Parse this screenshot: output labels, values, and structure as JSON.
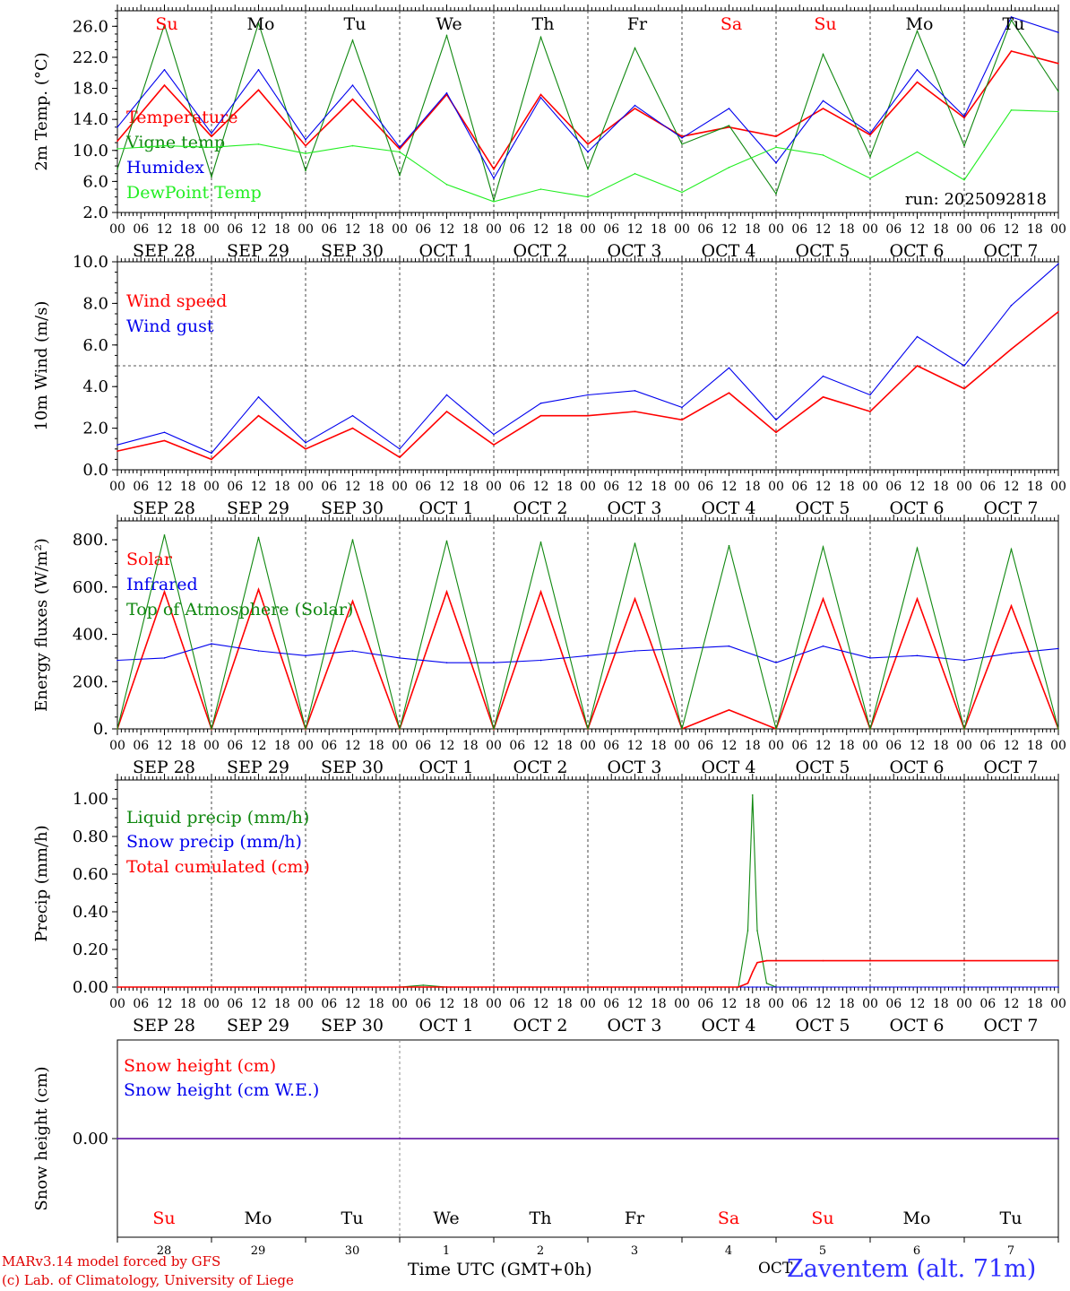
{
  "footer": {
    "credit_line1": "MARv3.14 model forced by GFS",
    "credit_line2": "(c) Lab. of Climatology, University of Liege",
    "x_title": "Time UTC (GMT+0h)",
    "station": "Zaventem (alt. 71m)",
    "month_label": "OCT"
  },
  "colors": {
    "red": "#ff0000",
    "darkgreen": "#108810",
    "blue": "#0000ee",
    "lightgreen": "#22ee22",
    "weekend": "#ff0000",
    "weekday": "#000000"
  },
  "day_names": [
    {
      "name": "Su",
      "weekend": true
    },
    {
      "name": "Mo",
      "weekend": false
    },
    {
      "name": "Tu",
      "weekend": false
    },
    {
      "name": "We",
      "weekend": false
    },
    {
      "name": "Th",
      "weekend": false
    },
    {
      "name": "Fr",
      "weekend": false
    },
    {
      "name": "Sa",
      "weekend": true
    },
    {
      "name": "Su",
      "weekend": true
    },
    {
      "name": "Mo",
      "weekend": false
    },
    {
      "name": "Tu",
      "weekend": false
    }
  ],
  "date_labels": [
    "SEP 28",
    "SEP 29",
    "SEP 30",
    "OCT  1",
    "OCT  2",
    "OCT  3",
    "OCT  4",
    "OCT  5",
    "OCT  6",
    "OCT  7"
  ],
  "bottom_day_numbers": [
    "28",
    "29",
    "30",
    "1",
    "2",
    "3",
    "4",
    "5",
    "6",
    "7"
  ],
  "hour_ticks": [
    "00",
    "06",
    "12",
    "18"
  ],
  "final_hour_tick": "00",
  "chart_data": [
    {
      "type": "line",
      "ylabel": "2m Temp. (°C)",
      "ylim": [
        2,
        28
      ],
      "yticks": [
        "26.0",
        "22.0",
        "18.0",
        "14.0",
        "10.0",
        "6.0",
        "2.0"
      ],
      "ytick_values": [
        26,
        22,
        18,
        14,
        10,
        6,
        2
      ],
      "annotation": "run: 2025092818",
      "x": [
        0,
        0.5,
        1,
        1.5,
        2,
        2.5,
        3,
        3.5,
        4,
        4.5,
        5,
        5.5,
        6,
        6.5,
        7,
        7.5,
        8,
        8.5,
        9,
        9.5,
        10
      ],
      "series": [
        {
          "name": "Temperature",
          "color": "red",
          "values": [
            11.2,
            18.4,
            11.8,
            17.8,
            10.6,
            16.6,
            10.2,
            17.2,
            7.6,
            17.2,
            10.8,
            15.4,
            11.8,
            13.0,
            11.8,
            15.4,
            12.0,
            18.8,
            14.2,
            22.8,
            21.2
          ]
        },
        {
          "name": "Vigne temp",
          "color": "darkgreen",
          "values": [
            7.6,
            26.2,
            6.6,
            26.4,
            7.4,
            24.2,
            6.8,
            24.8,
            3.6,
            24.6,
            7.6,
            23.2,
            10.8,
            13.2,
            4.4,
            22.4,
            9.2,
            25.4,
            10.6,
            26.8,
            17.6
          ]
        },
        {
          "name": "Humidex",
          "color": "blue",
          "values": [
            13.0,
            20.4,
            12.2,
            20.4,
            11.4,
            18.4,
            10.4,
            17.4,
            6.4,
            16.8,
            9.8,
            15.8,
            11.6,
            15.4,
            8.4,
            16.4,
            12.2,
            20.4,
            14.4,
            27.2,
            25.2
          ]
        },
        {
          "name": "DewPoint Temp",
          "color": "lightgreen",
          "values": [
            10.2,
            10.6,
            10.4,
            10.8,
            9.6,
            10.6,
            9.8,
            5.6,
            3.4,
            5.0,
            4.0,
            7.0,
            4.6,
            7.8,
            10.4,
            9.4,
            6.4,
            9.8,
            6.2,
            15.2,
            15.0
          ]
        }
      ]
    },
    {
      "type": "line",
      "ylabel": "10m Wind (m/s)",
      "ylim": [
        0,
        10
      ],
      "yticks": [
        "10.0",
        "8.0",
        "6.0",
        "4.0",
        "2.0",
        "0.0"
      ],
      "ytick_values": [
        10,
        8,
        6,
        4,
        2,
        0
      ],
      "reference_line": 5,
      "x": [
        0,
        0.5,
        1,
        1.5,
        2,
        2.5,
        3,
        3.5,
        4,
        4.5,
        5,
        5.5,
        6,
        6.5,
        7,
        7.5,
        8,
        8.5,
        9,
        9.5,
        10
      ],
      "series": [
        {
          "name": "Wind speed",
          "color": "red",
          "values": [
            0.9,
            1.4,
            0.5,
            2.6,
            1.0,
            2.0,
            0.6,
            2.8,
            1.2,
            2.6,
            2.6,
            2.8,
            2.4,
            3.7,
            1.8,
            3.5,
            2.8,
            5.0,
            3.9,
            5.8,
            7.6
          ]
        },
        {
          "name": "Wind gust",
          "color": "blue",
          "values": [
            1.2,
            1.8,
            0.8,
            3.5,
            1.3,
            2.6,
            1.0,
            3.6,
            1.7,
            3.2,
            3.6,
            3.8,
            3.0,
            4.9,
            2.4,
            4.5,
            3.6,
            6.4,
            5.0,
            7.9,
            9.9
          ]
        }
      ]
    },
    {
      "type": "line",
      "ylabel": "Energy fluxes (W/m²)",
      "ylim": [
        0,
        880
      ],
      "yticks": [
        "800.",
        "600.",
        "400.",
        "200.",
        "0."
      ],
      "ytick_values": [
        800,
        600,
        400,
        200,
        0
      ],
      "x": [
        0,
        0.5,
        1,
        1.5,
        2,
        2.5,
        3,
        3.5,
        4,
        4.5,
        5,
        5.5,
        6,
        6.5,
        7,
        7.5,
        8,
        8.5,
        9,
        9.5,
        10
      ],
      "series": [
        {
          "name": "Solar",
          "color": "red",
          "values": [
            0,
            580,
            0,
            590,
            0,
            540,
            0,
            580,
            0,
            580,
            0,
            550,
            0,
            80,
            0,
            550,
            0,
            550,
            0,
            520,
            0
          ]
        },
        {
          "name": "Infrared",
          "color": "blue",
          "values": [
            290,
            300,
            360,
            330,
            310,
            330,
            300,
            280,
            280,
            290,
            310,
            330,
            340,
            350,
            280,
            350,
            300,
            310,
            290,
            320,
            340
          ]
        },
        {
          "name": "Top of Atmosphere (Solar)",
          "color": "darkgreen",
          "values": [
            0,
            820,
            0,
            810,
            0,
            800,
            0,
            795,
            0,
            790,
            0,
            785,
            0,
            775,
            0,
            770,
            0,
            765,
            0,
            760,
            0
          ]
        }
      ]
    },
    {
      "type": "line",
      "ylabel": "Precip (mm/h)",
      "ylim": [
        0,
        1.1
      ],
      "yticks": [
        "1.00",
        "0.80",
        "0.60",
        "0.40",
        "0.20",
        "0.00"
      ],
      "ytick_values": [
        1,
        0.8,
        0.6,
        0.4,
        0.2,
        0
      ],
      "x": [
        0,
        3,
        3.25,
        3.5,
        6,
        6.6,
        6.7,
        6.75,
        6.8,
        6.9,
        7,
        7.5,
        8,
        9,
        10
      ],
      "series": [
        {
          "name": "Liquid precip (mm/h)",
          "color": "darkgreen",
          "values": [
            0,
            0,
            0.01,
            0,
            0,
            0,
            0.3,
            1.02,
            0.3,
            0.02,
            0,
            0,
            0,
            0,
            0
          ]
        },
        {
          "name": "Snow precip (mm/h)",
          "color": "blue",
          "values": [
            0,
            0,
            0,
            0,
            0,
            0,
            0,
            0,
            0,
            0,
            0,
            0,
            0,
            0,
            0
          ]
        },
        {
          "name": "Total cumulated (cm)",
          "color": "red",
          "values": [
            0,
            0,
            0,
            0,
            0,
            0,
            0.02,
            0.08,
            0.13,
            0.14,
            0.14,
            0.14,
            0.14,
            0.14,
            0.14
          ]
        }
      ]
    },
    {
      "type": "line",
      "ylabel": "Snow height (cm)",
      "ylim": [
        -1,
        1
      ],
      "yticks": [
        "0.00"
      ],
      "ytick_values": [
        0
      ],
      "x": [
        0,
        10
      ],
      "series": [
        {
          "name": "Snow height (cm)",
          "color": "red",
          "values": [
            0,
            0
          ]
        },
        {
          "name": "Snow height (cm W.E.)",
          "color": "blue",
          "values": [
            0,
            0
          ]
        }
      ]
    }
  ]
}
